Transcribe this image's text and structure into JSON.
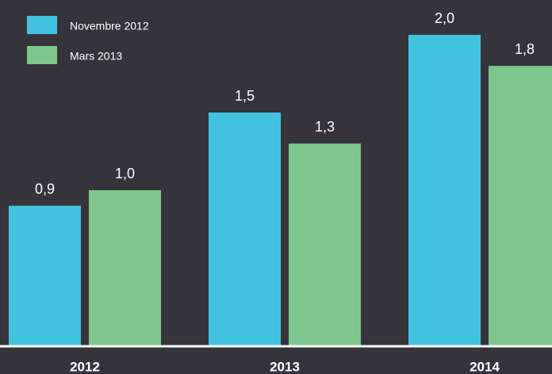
{
  "chart_data": {
    "type": "bar",
    "categories": [
      "2012",
      "2013",
      "2014"
    ],
    "series": [
      {
        "name": "Novembre 2012",
        "color": "#41c3e0",
        "values": [
          0.9,
          1.5,
          2.0
        ],
        "value_labels": [
          "0,9",
          "1,5",
          "2,0"
        ]
      },
      {
        "name": "Mars 2013",
        "color": "#7dc78e",
        "values": [
          1.0,
          1.3,
          1.8
        ],
        "value_labels": [
          "1,0",
          "1,3",
          "1,8"
        ]
      }
    ]
  }
}
